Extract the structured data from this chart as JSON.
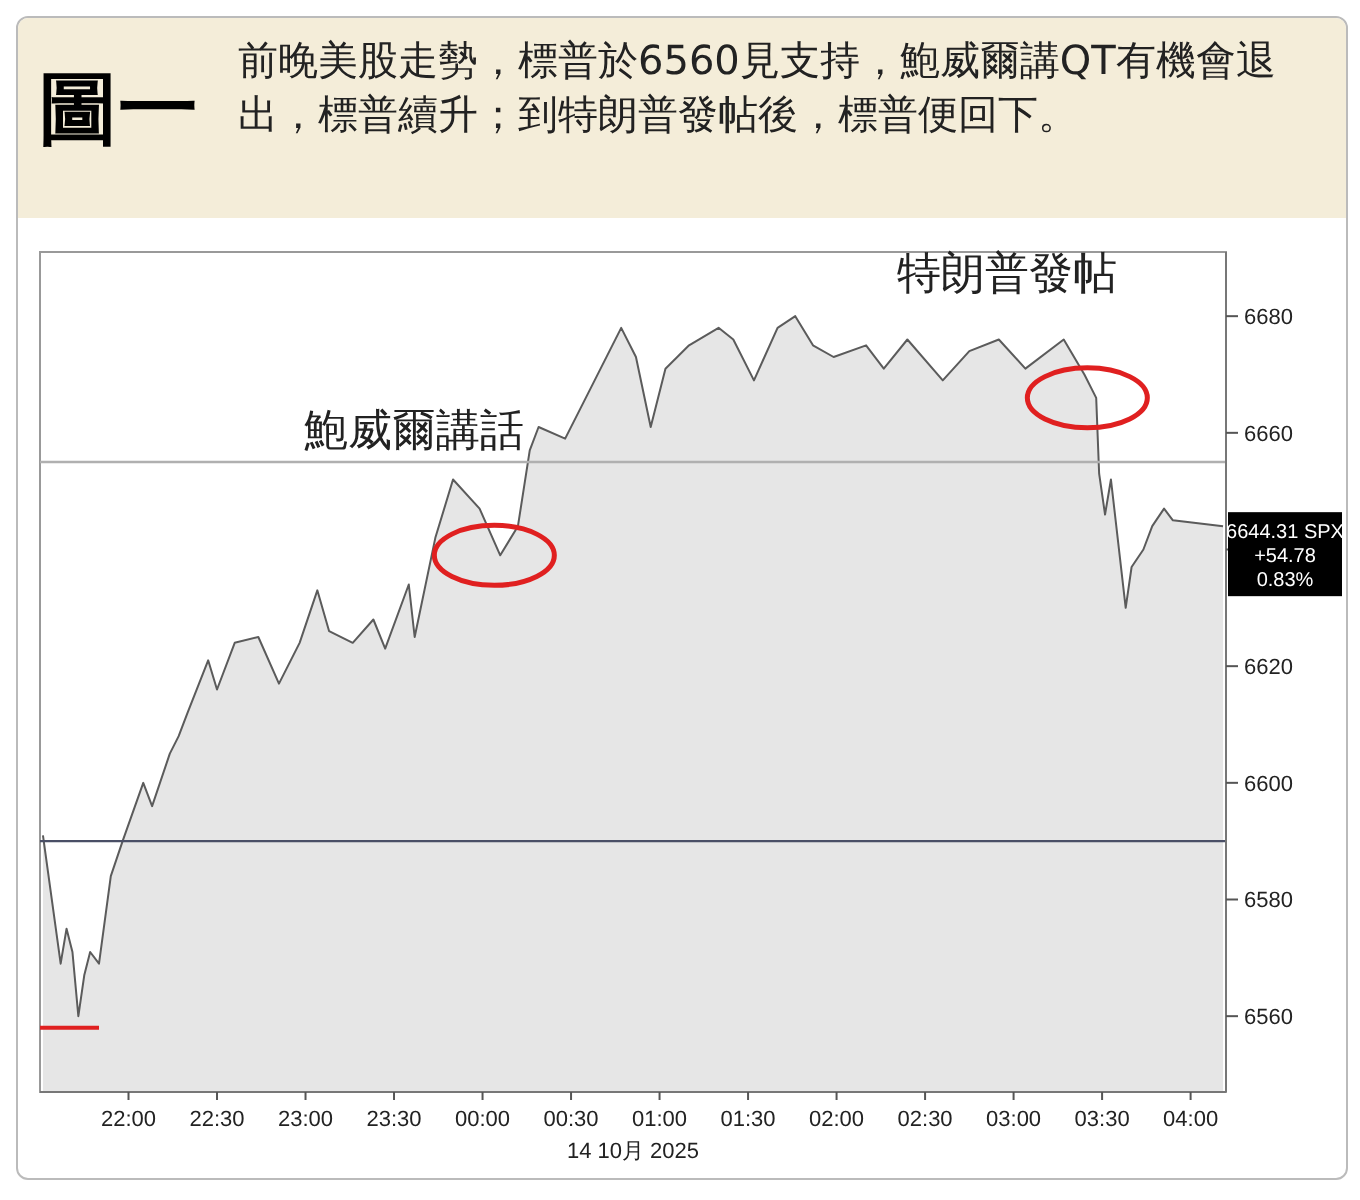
{
  "chart_data": {
    "type": "area",
    "title": "圖一",
    "subtitle": "前晚美股走勢，標普於6560見支持，鮑威爾講QT有機會退出，標普續升；到特朗普發帖後，標普便回下。",
    "xlabel": "14 10月 2025",
    "xlim": [
      "2025-10-14T21:30",
      "2025-10-15T04:12"
    ],
    "xticks": [
      {
        "value": "2025-10-14T22:00",
        "label": "22:00"
      },
      {
        "value": "2025-10-14T22:30",
        "label": "22:30"
      },
      {
        "value": "2025-10-14T23:00",
        "label": "23:00"
      },
      {
        "value": "2025-10-14T23:30",
        "label": "23:30"
      },
      {
        "value": "2025-10-15T00:00",
        "label": "00:00"
      },
      {
        "value": "2025-10-15T00:30",
        "label": "00:30"
      },
      {
        "value": "2025-10-15T01:00",
        "label": "01:00"
      },
      {
        "value": "2025-10-15T01:30",
        "label": "01:30"
      },
      {
        "value": "2025-10-15T02:00",
        "label": "02:00"
      },
      {
        "value": "2025-10-15T02:30",
        "label": "02:30"
      },
      {
        "value": "2025-10-15T03:00",
        "label": "03:00"
      },
      {
        "value": "2025-10-15T03:30",
        "label": "03:30"
      },
      {
        "value": "2025-10-15T04:00",
        "label": "04:00"
      }
    ],
    "ylim": [
      6547,
      6691
    ],
    "yticks": [
      6560,
      6580,
      6600,
      6620,
      {
        "value": 6640,
        "label": null
      },
      6660,
      6680
    ],
    "series": [
      {
        "color": "#e6e6e6",
        "x": [
          "2025-10-14T21:31",
          "2025-10-14T21:37",
          "2025-10-14T21:39",
          "2025-10-14T21:41",
          "2025-10-14T21:43",
          "2025-10-14T21:45",
          "2025-10-14T21:47",
          "2025-10-14T21:50",
          "2025-10-14T21:54",
          "2025-10-14T21:58",
          "2025-10-14T22:05",
          "2025-10-14T22:08",
          "2025-10-14T22:14",
          "2025-10-14T22:17",
          "2025-10-14T22:20",
          "2025-10-14T22:27",
          "2025-10-14T22:30",
          "2025-10-14T22:36",
          "2025-10-14T22:44",
          "2025-10-14T22:51",
          "2025-10-14T22:58",
          "2025-10-14T23:04",
          "2025-10-14T23:08",
          "2025-10-14T23:16",
          "2025-10-14T23:23",
          "2025-10-14T23:27",
          "2025-10-14T23:35",
          "2025-10-14T23:37",
          "2025-10-14T23:44",
          "2025-10-14T23:50",
          "2025-10-14T23:59",
          "2025-10-15T00:06",
          "2025-10-15T00:12",
          "2025-10-15T00:16",
          "2025-10-15T00:19",
          "2025-10-15T00:28",
          "2025-10-15T00:38",
          "2025-10-15T00:47",
          "2025-10-15T00:52",
          "2025-10-15T00:57",
          "2025-10-15T01:02",
          "2025-10-15T01:10",
          "2025-10-15T01:20",
          "2025-10-15T01:25",
          "2025-10-15T01:32",
          "2025-10-15T01:40",
          "2025-10-15T01:46",
          "2025-10-15T01:52",
          "2025-10-15T01:59",
          "2025-10-15T02:10",
          "2025-10-15T02:16",
          "2025-10-15T02:24",
          "2025-10-15T02:36",
          "2025-10-15T02:45",
          "2025-10-15T02:55",
          "2025-10-15T03:04",
          "2025-10-15T03:17",
          "2025-10-15T03:24",
          "2025-10-15T03:28",
          "2025-10-15T03:29",
          "2025-10-15T03:31",
          "2025-10-15T03:33",
          "2025-10-15T03:38",
          "2025-10-15T03:40",
          "2025-10-15T03:44",
          "2025-10-15T03:47",
          "2025-10-15T03:51",
          "2025-10-15T03:54",
          "2025-10-15T04:11"
        ],
        "values": [
          6591,
          6569,
          6575,
          6571,
          6560,
          6567,
          6571,
          6569,
          6584,
          6590,
          6600,
          6596,
          6605,
          6608,
          6612,
          6621,
          6616,
          6624,
          6625,
          6617,
          6624,
          6633,
          6626,
          6624,
          6628,
          6623,
          6634,
          6625,
          6642,
          6652,
          6647,
          6639,
          6644,
          6657,
          6661,
          6659,
          6669,
          6678,
          6673,
          6661,
          6671,
          6675,
          6678,
          6676,
          6669,
          6678,
          6680,
          6675,
          6673,
          6675,
          6671,
          6676,
          6669,
          6674,
          6676,
          6671,
          6676,
          6670,
          6666,
          6653,
          6646,
          6652,
          6630,
          6637,
          6640,
          6644,
          6647,
          6645,
          6644
        ]
      },
      {
        "type": "line",
        "color": "#e02020",
        "x": [
          "2025-10-14T21:30",
          "2025-10-14T21:50"
        ],
        "values": [
          6558,
          6558
        ]
      }
    ],
    "ref_lines": [
      {
        "axis": "y",
        "value": 6590,
        "color": "#4a4f66"
      },
      {
        "axis": "y",
        "value": 6655,
        "color": "#b0b0b0"
      }
    ],
    "annotations": [
      {
        "text": "鮑威爾講話",
        "x": "2025-10-15T00:04",
        "y": 6639
      },
      {
        "text": "特朗普發帖",
        "x": "2025-10-15T03:25",
        "y": 6666
      },
      "6644.31 SPX",
      "+54.78",
      "0.83%"
    ]
  }
}
